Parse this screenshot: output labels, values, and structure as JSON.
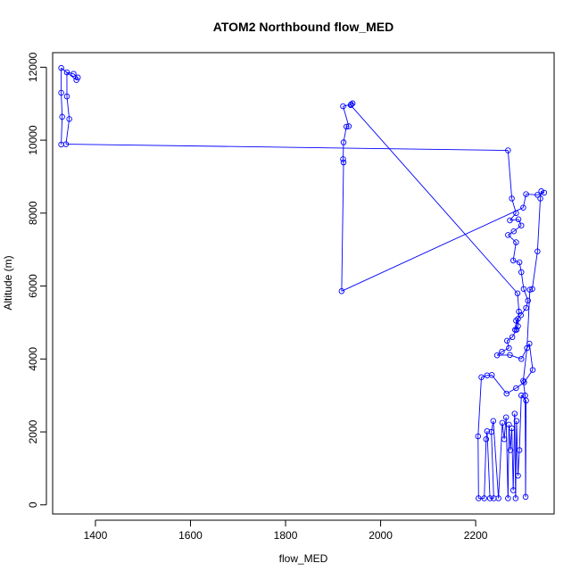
{
  "chart_data": {
    "type": "line",
    "title": "ATOM2 Northbound flow_MED",
    "xlabel": "flow_MED",
    "ylabel": "Altitude (m)",
    "xlim": [
      1310,
      2365
    ],
    "ylim": [
      -250,
      12400
    ],
    "x_ticks": [
      1400,
      1600,
      1800,
      2000,
      2200
    ],
    "y_ticks": [
      0,
      2000,
      4000,
      6000,
      8000,
      10000,
      12000
    ],
    "grid": false,
    "legend": "none",
    "markers": "open-circle",
    "colors": {
      "series": "#0000ff",
      "axes": "#000000",
      "background": "#ffffff"
    },
    "series": [
      {
        "values": [
          [
            1328,
            9880
          ],
          [
            1330,
            10640
          ],
          [
            1328,
            11300
          ],
          [
            1328,
            11980
          ],
          [
            1360,
            11650
          ],
          [
            1363,
            11720
          ],
          [
            1354,
            11820
          ],
          [
            1340,
            11860
          ],
          [
            1340,
            11200
          ],
          [
            1345,
            10580
          ],
          [
            1338,
            9890
          ],
          [
            2268,
            9720
          ],
          [
            2276,
            8400
          ],
          [
            2285,
            8000
          ],
          [
            2272,
            7800
          ],
          [
            2290,
            7830
          ],
          [
            2296,
            7660
          ],
          [
            2280,
            7500
          ],
          [
            2268,
            7400
          ],
          [
            2285,
            7200
          ],
          [
            2279,
            6700
          ],
          [
            2292,
            6650
          ],
          [
            2296,
            6380
          ],
          [
            2301,
            5920
          ],
          [
            2310,
            5600
          ],
          [
            2306,
            5400
          ],
          [
            2295,
            5200
          ],
          [
            2285,
            5050
          ],
          [
            2286,
            4800
          ],
          [
            2277,
            4600
          ],
          [
            2266,
            4500
          ],
          [
            2270,
            4300
          ],
          [
            2255,
            4200
          ],
          [
            2245,
            4100
          ],
          [
            2272,
            4110
          ],
          [
            2296,
            4000
          ],
          [
            2313,
            4420
          ],
          [
            2320,
            3700
          ],
          [
            2302,
            3360
          ],
          [
            2285,
            3200
          ],
          [
            2265,
            3050
          ],
          [
            2234,
            3560
          ],
          [
            2224,
            3550
          ],
          [
            2212,
            3500
          ],
          [
            2205,
            1880
          ],
          [
            2206,
            180
          ],
          [
            2218,
            180
          ],
          [
            2222,
            1800
          ],
          [
            2224,
            2020
          ],
          [
            2230,
            180
          ],
          [
            2238,
            180
          ],
          [
            2233,
            2000
          ],
          [
            2237,
            2300
          ],
          [
            2248,
            180
          ],
          [
            2256,
            2250
          ],
          [
            2260,
            1800
          ],
          [
            2264,
            2400
          ],
          [
            2268,
            180
          ],
          [
            2270,
            2200
          ],
          [
            2273,
            1500
          ],
          [
            2276,
            2100
          ],
          [
            2279,
            400
          ],
          [
            2282,
            2500
          ],
          [
            2284,
            180
          ],
          [
            2286,
            2300
          ],
          [
            2289,
            800
          ],
          [
            2292,
            1500
          ],
          [
            2296,
            3000
          ],
          [
            2306,
            2860
          ],
          [
            2305,
            220
          ],
          [
            2304,
            3000
          ],
          [
            2300,
            3400
          ],
          [
            2308,
            4300
          ],
          [
            2314,
            5900
          ],
          [
            2319,
            5920
          ],
          [
            2330,
            6950
          ],
          [
            2336,
            8400
          ],
          [
            2338,
            8600
          ],
          [
            2344,
            8560
          ],
          [
            2330,
            8500
          ],
          [
            2306,
            8520
          ],
          [
            2300,
            8150
          ],
          [
            1918,
            5860
          ],
          [
            1922,
            9390
          ],
          [
            1921,
            9480
          ],
          [
            1922,
            9940
          ],
          [
            1928,
            10370
          ],
          [
            1933,
            10380
          ],
          [
            1921,
            10930
          ],
          [
            1938,
            10980
          ],
          [
            1941,
            11010
          ],
          [
            1937,
            10960
          ],
          [
            2288,
            5800
          ],
          [
            2291,
            5300
          ],
          [
            2289,
            4900
          ],
          [
            2283,
            4800
          ],
          [
            2289,
            5100
          ]
        ]
      }
    ]
  }
}
